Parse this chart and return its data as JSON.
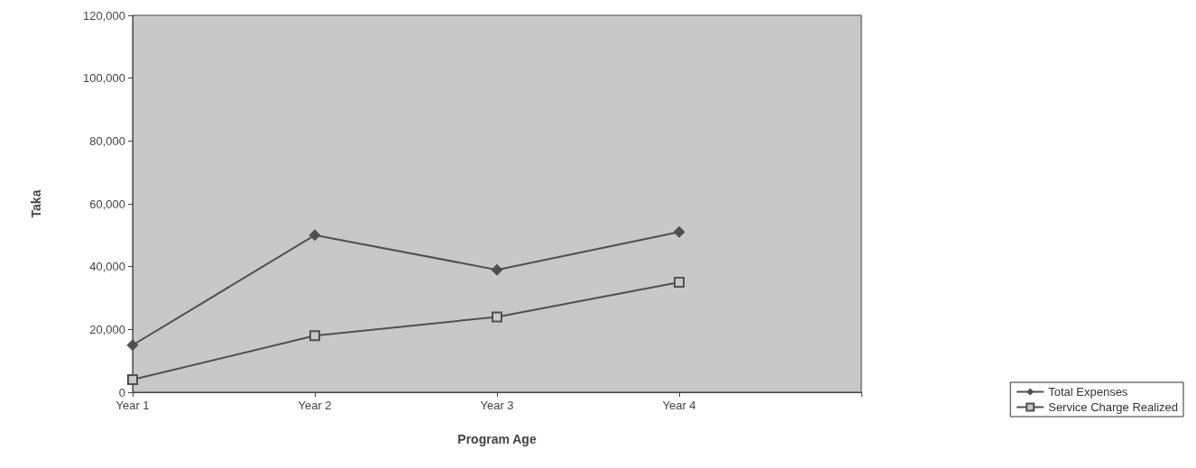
{
  "chart_data": {
    "type": "line",
    "xlabel": "Program Age",
    "ylabel": "Taka",
    "categories": [
      "Year 1",
      "Year 2",
      "Year 3",
      "Year 4",
      null
    ],
    "series": [
      {
        "name": "Total Expenses",
        "color": "#505050",
        "marker": "diamond",
        "values": [
          15000,
          50000,
          39000,
          51000,
          null
        ]
      },
      {
        "name": "Service Charge Realized",
        "color": "#505050",
        "marker": "square",
        "values": [
          4000,
          18000,
          24000,
          35000,
          null
        ]
      }
    ],
    "ylim": [
      0,
      120000
    ],
    "yticks": [
      0,
      {
        "value": 20000,
        "label": "20,000"
      },
      {
        "value": 40000,
        "label": "40,000"
      },
      {
        "value": 60000,
        "label": "60,000"
      },
      {
        "value": 80000,
        "label": "80,000"
      },
      {
        "value": 100000,
        "label": "100,000"
      },
      {
        "value": 120000,
        "label": "120,000"
      }
    ],
    "grid": false,
    "legend": "bottom right",
    "line_style": "solid"
  }
}
